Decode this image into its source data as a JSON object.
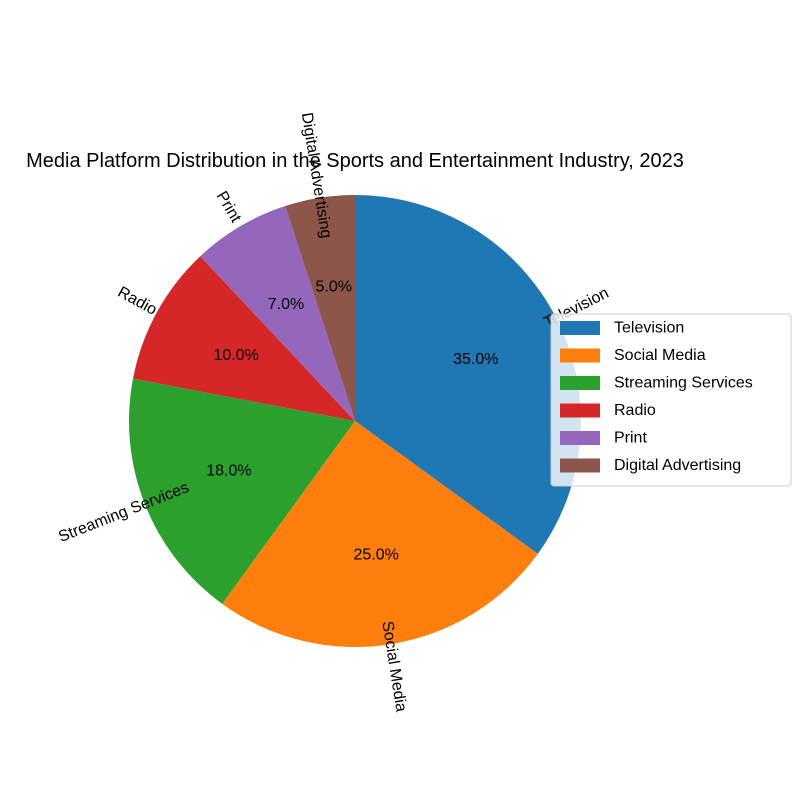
{
  "chart_data": {
    "type": "pie",
    "title": "Media Platform Distribution in the Sports and Entertainment Industry, 2023",
    "categories": [
      "Television",
      "Social Media",
      "Streaming Services",
      "Radio",
      "Print",
      "Digital Advertising"
    ],
    "values": [
      35.0,
      25.0,
      18.0,
      10.0,
      7.0,
      5.0
    ],
    "value_labels": [
      "35.0%",
      "25.0%",
      "18.0%",
      "10.0%",
      "7.0%",
      "5.0%"
    ],
    "colors": [
      "#1f77b4",
      "#ff7f0e",
      "#2ca02c",
      "#d62728",
      "#9467bd",
      "#8c564b"
    ],
    "start_angle_deg": 90,
    "direction": "clockwise",
    "legend": {
      "placement": "right",
      "entries": [
        "Television",
        "Social Media",
        "Streaming Services",
        "Radio",
        "Print",
        "Digital Advertising"
      ]
    }
  }
}
